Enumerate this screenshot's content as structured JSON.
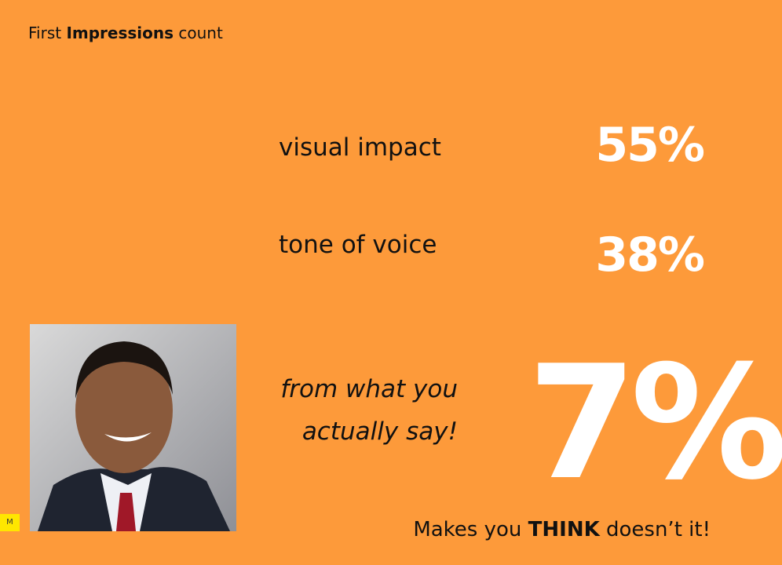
{
  "header": {
    "title": [
      "First ",
      "Impressions",
      " count"
    ]
  },
  "stats": [
    {
      "label": "visual impact",
      "value": "55%"
    },
    {
      "label": "tone of voice",
      "value": "38%"
    }
  ],
  "highlight": {
    "label": [
      "from what you",
      "actually say!"
    ],
    "value": "7%"
  },
  "badge": "M",
  "footer": [
    "Makes you ",
    "THINK",
    " doesn’t it!"
  ]
}
